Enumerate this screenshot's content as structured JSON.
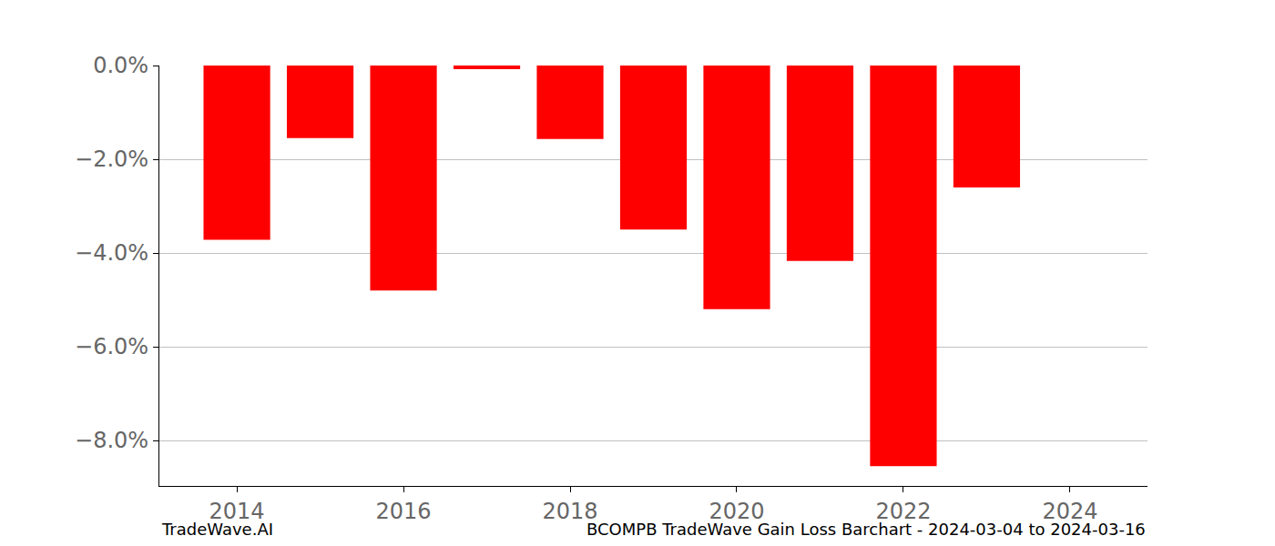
{
  "chart_data": {
    "type": "bar",
    "title": "BCOMPB TradeWave Gain Loss Barchart - 2024-03-04 to 2024-03-16",
    "annotations": [
      "TradeWave.AI"
    ],
    "x": [
      2014,
      2015,
      2016,
      2017,
      2018,
      2019,
      2020,
      2021,
      2022,
      2023
    ],
    "values": [
      -3.72,
      -1.55,
      -4.8,
      -0.08,
      -1.57,
      -3.5,
      -5.2,
      -4.17,
      -8.55,
      -2.6
    ],
    "color": "#ff0000",
    "xlim": [
      2013.07,
      2024.93
    ],
    "xticks": [
      2014,
      2016,
      2018,
      2020,
      2022,
      2024
    ],
    "ylim": [
      -8.97,
      0
    ],
    "yticks": [
      {
        "value": 0,
        "label": "0.0%"
      },
      {
        "value": -2,
        "label": "−2.0%"
      },
      {
        "value": -4,
        "label": "−4.0%"
      },
      {
        "value": -6,
        "label": "−6.0%"
      },
      {
        "value": -8,
        "label": "−8.0%"
      }
    ],
    "grid": true
  }
}
